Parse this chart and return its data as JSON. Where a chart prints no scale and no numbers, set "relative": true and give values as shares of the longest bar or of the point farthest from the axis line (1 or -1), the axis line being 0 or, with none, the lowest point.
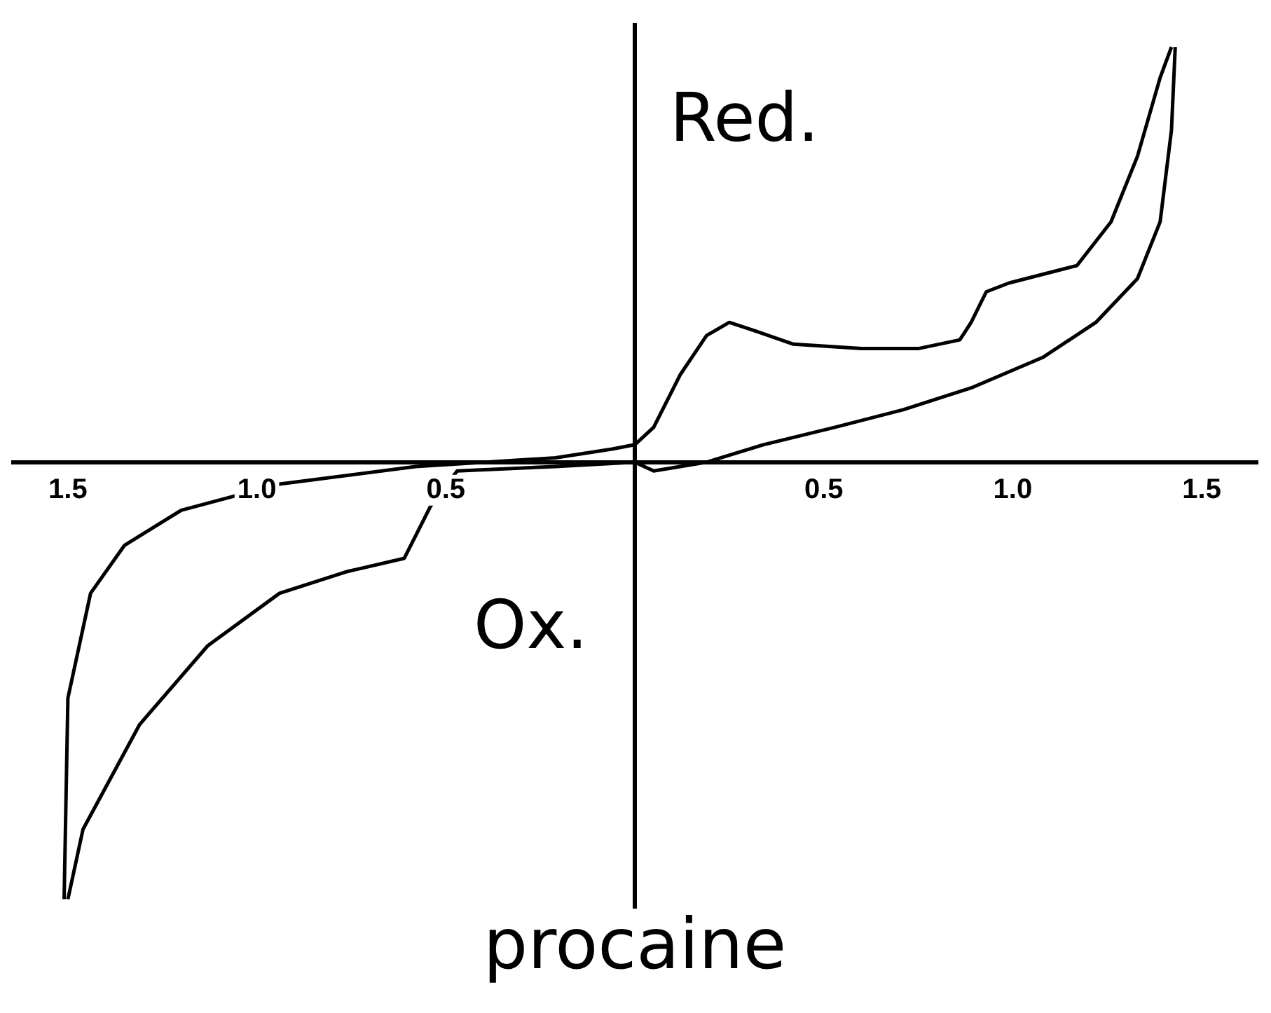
{
  "chart_data": {
    "type": "line",
    "title": "procaine",
    "relative": true,
    "annotations": [
      "Red.",
      "Ox."
    ],
    "xlim": [
      -1.65,
      1.65
    ],
    "xticks": [
      {
        "value": -1.5,
        "label": "1.5"
      },
      {
        "value": -1.0,
        "label": "1.0"
      },
      {
        "value": -0.5,
        "label": "0.5"
      },
      {
        "value": 0.5,
        "label": "0.5"
      },
      {
        "value": 1.0,
        "label": "1.0"
      },
      {
        "value": 1.5,
        "label": "1.5"
      }
    ],
    "grid": false,
    "legend": false,
    "marker": "none",
    "line_style": "solid",
    "series": [
      {
        "color": "#000000",
        "x": [
          -1.51,
          -1.5,
          -1.44,
          -1.35,
          -1.2,
          -0.94,
          -0.58,
          -0.21,
          -0.06,
          0,
          0.05,
          0.12,
          0.19,
          0.25,
          0.32,
          0.42,
          0.6,
          0.75,
          0.86,
          0.89,
          0.93,
          0.99,
          1.08,
          1.17,
          1.26,
          1.33,
          1.39,
          1.42
        ],
        "values": [
          -1.0,
          -0.54,
          -0.3,
          -0.19,
          -0.11,
          -0.05,
          -0.01,
          0.01,
          0.03,
          0.04,
          0.08,
          0.2,
          0.29,
          0.32,
          0.3,
          0.27,
          0.26,
          0.26,
          0.28,
          0.32,
          0.39,
          0.41,
          0.43,
          0.45,
          0.55,
          0.7,
          0.88,
          0.95
        ]
      },
      {
        "color": "#000000",
        "x": [
          -1.5,
          -1.46,
          -1.31,
          -1.13,
          -0.94,
          -0.76,
          -0.61,
          -0.54,
          -0.47,
          -0.21,
          0,
          0.05,
          0.19,
          0.34,
          0.53,
          0.71,
          0.89,
          1.08,
          1.22,
          1.33,
          1.39,
          1.42,
          1.43
        ],
        "values": [
          -1.0,
          -0.84,
          -0.6,
          -0.42,
          -0.3,
          -0.25,
          -0.22,
          -0.1,
          -0.02,
          -0.01,
          0,
          -0.02,
          0,
          0.04,
          0.08,
          0.12,
          0.17,
          0.24,
          0.32,
          0.42,
          0.55,
          0.76,
          0.95
        ]
      }
    ]
  }
}
